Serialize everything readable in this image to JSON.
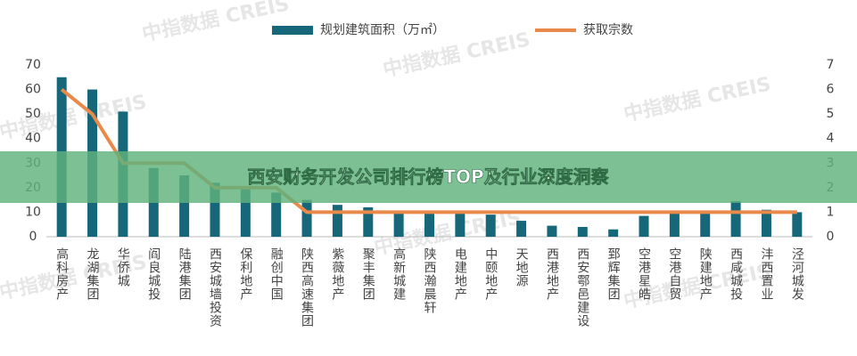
{
  "chart_data": {
    "type": "bar-line",
    "categories": [
      "高科房产",
      "龙湖集团",
      "华侨城",
      "阎良城投",
      "陆港集团",
      "西安城墙投资",
      "保利地产",
      "融创中国",
      "陕西高速集团",
      "紫薇地产",
      "聚丰集团",
      "高新城建",
      "陕西瀚晨轩",
      "电建地产",
      "中颐地产",
      "天地源",
      "西港地产",
      "西安鄠邑建设",
      "郅辉集团",
      "空港星皓",
      "空港自贸",
      "陕建地产",
      "西咸城投",
      "沣西置业",
      "泾河城发"
    ],
    "series": [
      {
        "name": "规划建筑面积（万㎡）",
        "color": "#17677a",
        "type": "bar",
        "values": [
          65,
          60,
          51,
          28,
          25,
          22,
          20,
          18,
          15,
          13,
          12,
          10,
          10,
          10,
          9,
          6.5,
          4.5,
          4,
          3,
          8.5,
          10,
          10,
          14.5,
          11,
          10
        ]
      },
      {
        "name": "获取宗数",
        "color": "#e98a4a",
        "type": "line",
        "axis": "y2",
        "values": [
          6,
          5,
          3,
          3,
          3,
          2,
          2,
          2,
          1,
          1,
          1,
          1,
          1,
          1,
          1,
          1,
          1,
          1,
          1,
          1,
          1,
          1,
          1,
          1,
          1
        ]
      }
    ],
    "ylim": [
      0,
      70
    ],
    "yticks": [
      0,
      10,
      20,
      30,
      40,
      50,
      60,
      70
    ],
    "y2lim": [
      0,
      7
    ],
    "y2ticks": [
      0,
      1,
      2,
      3,
      4,
      5,
      6,
      7
    ],
    "grid": false,
    "legend": "top",
    "watermark": "中指数据 CREIS"
  },
  "banner": {
    "title": "西安财务开发公司排行榜TOP及行业深度洞察"
  }
}
